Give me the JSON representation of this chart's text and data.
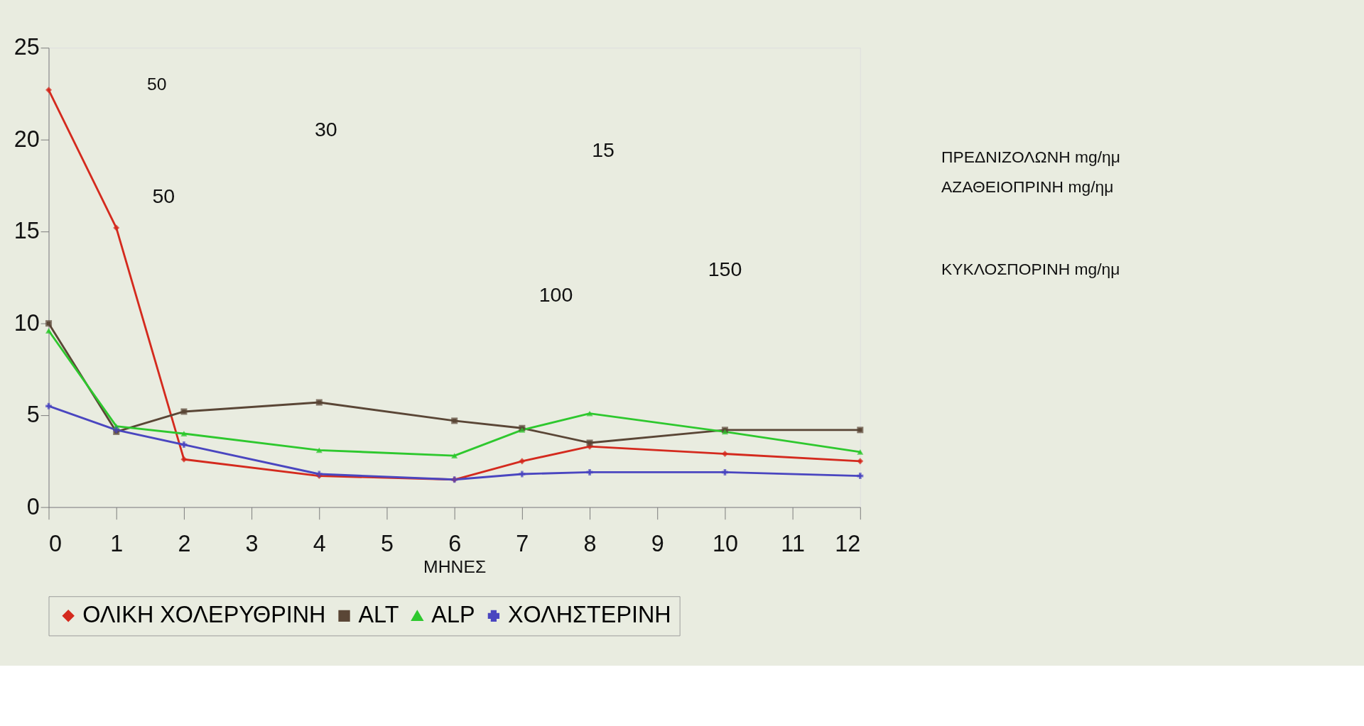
{
  "chart_data": {
    "type": "line",
    "xlabel": "ΜΗΝΕΣ",
    "x": [
      0,
      1,
      2,
      4,
      6,
      7,
      8,
      10,
      12
    ],
    "series": [
      {
        "name": "ΟΛΙΚΗ ΧΟΛΕΡΥΘΡΙΝΗ",
        "color": "#d42a1e",
        "marker": "diamond",
        "values": [
          22.7,
          15.2,
          2.6,
          1.7,
          1.5,
          2.5,
          3.3,
          2.9,
          2.5
        ]
      },
      {
        "name": "ALT",
        "color": "#5a4636",
        "marker": "square",
        "values": [
          10,
          4.1,
          5.2,
          5.7,
          4.7,
          4.3,
          3.5,
          4.2,
          4.2
        ]
      },
      {
        "name": "ALP",
        "color": "#2ec82e",
        "marker": "triangle",
        "values": [
          9.6,
          4.4,
          4.0,
          3.1,
          2.8,
          4.2,
          5.1,
          4.1,
          3.0
        ]
      },
      {
        "name": "ΧΟΛΗΣΤΕΡΙΝΗ",
        "color": "#4a46c0",
        "marker": "cross",
        "values": [
          5.5,
          4.2,
          3.4,
          1.8,
          1.5,
          1.8,
          1.9,
          1.9,
          1.7
        ]
      }
    ],
    "xlim": [
      0,
      12
    ],
    "xticks": [
      0,
      1,
      2,
      3,
      4,
      5,
      6,
      7,
      8,
      9,
      10,
      11,
      12
    ],
    "ylim": [
      0,
      25
    ],
    "yticks": [
      0,
      5,
      10,
      15,
      20,
      25
    ],
    "grid": false,
    "legend": "bottom",
    "annotations": [
      "50",
      "30",
      "15",
      "50",
      "100",
      "150",
      "ΠΡΕΔΝΙΖΟΛΩΝΗ mg/ημ",
      "ΑΖΑΘΕΙΟΠΡΙΝΗ mg/ημ",
      "ΚΥΚΛΟΣΠΟΡΙΝΗ mg/ημ"
    ]
  }
}
